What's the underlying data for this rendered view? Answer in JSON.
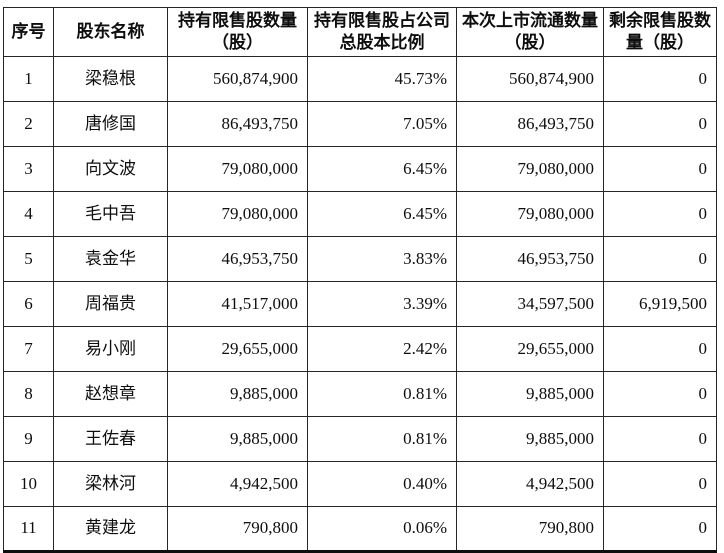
{
  "table": {
    "columns": [
      {
        "id": "index",
        "label": "序号"
      },
      {
        "id": "name",
        "label": "股东名称"
      },
      {
        "id": "held",
        "label": "持有限售股数量（股）"
      },
      {
        "id": "ratio",
        "label": "持有限售股占公司总股本比例"
      },
      {
        "id": "listed",
        "label": "本次上市流通数量（股）"
      },
      {
        "id": "remaining",
        "label": "剩余限售股数量（股）"
      }
    ],
    "rows": [
      [
        "1",
        "梁稳根",
        "560,874,900",
        "45.73%",
        "560,874,900",
        "0"
      ],
      [
        "2",
        "唐修国",
        "86,493,750",
        "7.05%",
        "86,493,750",
        "0"
      ],
      [
        "3",
        "向文波",
        "79,080,000",
        "6.45%",
        "79,080,000",
        "0"
      ],
      [
        "4",
        "毛中吾",
        "79,080,000",
        "6.45%",
        "79,080,000",
        "0"
      ],
      [
        "5",
        "袁金华",
        "46,953,750",
        "3.83%",
        "46,953,750",
        "0"
      ],
      [
        "6",
        "周福贵",
        "41,517,000",
        "3.39%",
        "34,597,500",
        "6,919,500"
      ],
      [
        "7",
        "易小刚",
        "29,655,000",
        "2.42%",
        "29,655,000",
        "0"
      ],
      [
        "8",
        "赵想章",
        "9,885,000",
        "0.81%",
        "9,885,000",
        "0"
      ],
      [
        "9",
        "王佐春",
        "9,885,000",
        "0.81%",
        "9,885,000",
        "0"
      ],
      [
        "10",
        "梁林河",
        "4,942,500",
        "0.40%",
        "4,942,500",
        "0"
      ],
      [
        "11",
        "黄建龙",
        "790,800",
        "0.06%",
        "790,800",
        "0"
      ]
    ],
    "colors": {
      "text": "#0e0e0e",
      "border": "#262626",
      "background": "#ffffff"
    }
  }
}
